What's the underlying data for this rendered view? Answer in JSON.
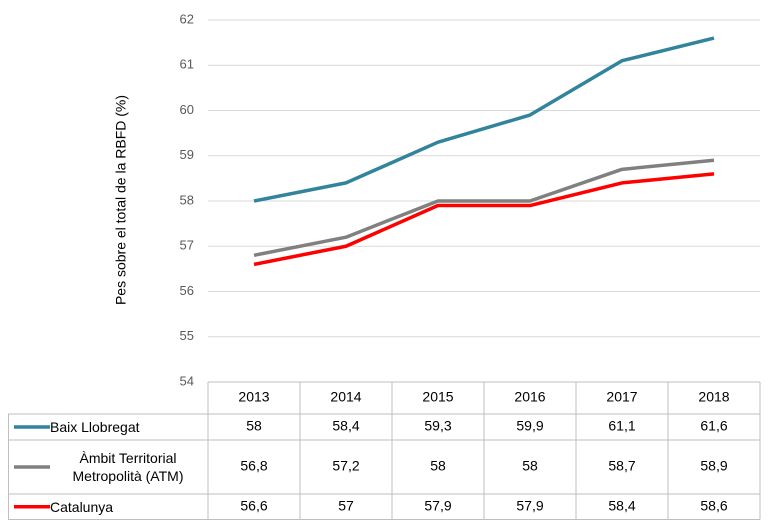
{
  "chart_data": {
    "type": "line",
    "y_label": "Pes sobre el total de la RBFD (%)",
    "categories": [
      "2013",
      "2014",
      "2015",
      "2016",
      "2017",
      "2018"
    ],
    "ylim": [
      54,
      62
    ],
    "yticks": [
      54,
      55,
      56,
      57,
      58,
      59,
      60,
      61,
      62
    ],
    "grid": true,
    "series": [
      {
        "name": "Baix Llobregat",
        "color": "#31849b",
        "values": [
          58,
          58.4,
          59.3,
          59.9,
          61.1,
          61.6
        ],
        "value_labels": [
          "58",
          "58,4",
          "59,3",
          "59,9",
          "61,1",
          "61,6"
        ]
      },
      {
        "name": "Àmbit Territorial Metropolità (ATM)",
        "color": "#808080",
        "values": [
          56.8,
          57.2,
          58,
          58,
          58.7,
          58.9
        ],
        "value_labels": [
          "56,8",
          "57,2",
          "58",
          "58",
          "58,7",
          "58,9"
        ]
      },
      {
        "name": "Catalunya",
        "color": "#ff0000",
        "values": [
          56.6,
          57,
          57.9,
          57.9,
          58.4,
          58.6
        ],
        "value_labels": [
          "56,6",
          "57",
          "57,9",
          "57,9",
          "58,4",
          "58,6"
        ]
      }
    ]
  }
}
